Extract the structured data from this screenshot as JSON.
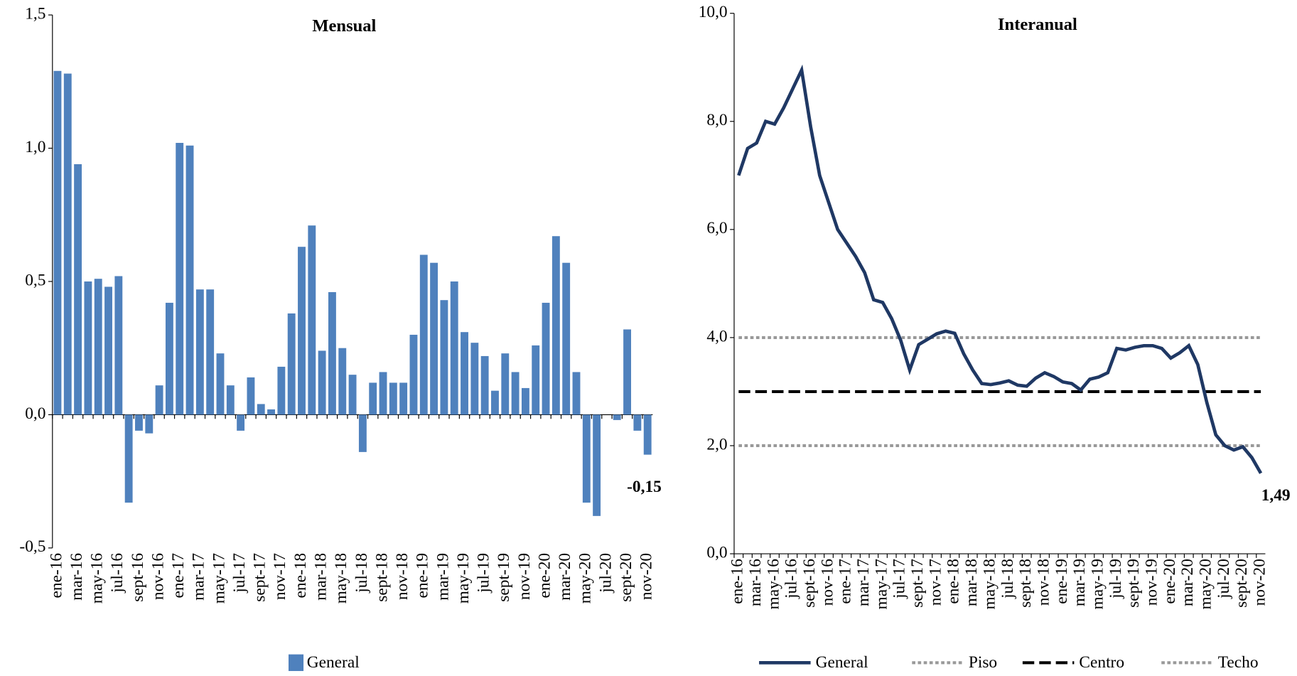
{
  "chart_data": [
    {
      "type": "bar",
      "title": "Mensual",
      "categories": [
        "ene-16",
        null,
        "mar-16",
        null,
        "may-16",
        null,
        "jul-16",
        null,
        "sept-16",
        null,
        "nov-16",
        null,
        "ene-17",
        null,
        "mar-17",
        null,
        "may-17",
        null,
        "jul-17",
        null,
        "sept-17",
        null,
        "nov-17",
        null,
        "ene-18",
        null,
        "mar-18",
        null,
        "may-18",
        null,
        "jul-18",
        null,
        "sept-18",
        null,
        "nov-18",
        null,
        "ene-19",
        null,
        "mar-19",
        null,
        "may-19",
        null,
        "jul-19",
        null,
        "sept-19",
        null,
        "nov-19",
        null,
        "ene-20",
        null,
        "mar-20",
        null,
        "may-20",
        null,
        "jul-20",
        null,
        "sept-20",
        null,
        "nov-20"
      ],
      "series": [
        {
          "name": "General",
          "color": "#4f81bd",
          "values": [
            1.29,
            1.28,
            0.94,
            0.5,
            0.51,
            0.48,
            0.52,
            -0.33,
            -0.06,
            -0.07,
            0.11,
            0.42,
            1.02,
            1.01,
            0.47,
            0.47,
            0.23,
            0.11,
            -0.06,
            0.14,
            0.04,
            0.02,
            0.18,
            0.38,
            0.63,
            0.71,
            0.24,
            0.46,
            0.25,
            0.15,
            -0.14,
            0.12,
            0.16,
            0.12,
            0.12,
            0.3,
            0.6,
            0.57,
            0.43,
            0.5,
            0.31,
            0.27,
            0.22,
            0.09,
            0.23,
            0.16,
            0.1,
            0.26,
            0.42,
            0.67,
            0.57,
            0.16,
            -0.33,
            -0.38,
            0,
            -0.02,
            0.32,
            -0.06,
            -0.15
          ],
          "value_labels": [
            null,
            null,
            null,
            null,
            null,
            null,
            null,
            null,
            null,
            null,
            null,
            null,
            null,
            null,
            null,
            null,
            null,
            null,
            null,
            null,
            null,
            null,
            null,
            null,
            null,
            null,
            null,
            null,
            null,
            null,
            null,
            null,
            null,
            null,
            null,
            null,
            null,
            null,
            null,
            null,
            null,
            null,
            null,
            null,
            null,
            null,
            null,
            null,
            null,
            null,
            null,
            null,
            null,
            null,
            null,
            null,
            null,
            null,
            "-0,15"
          ]
        }
      ],
      "ylim": [
        -0.5,
        1.5
      ],
      "yticks": [
        {
          "value": -0.5,
          "label": "-0,5"
        },
        {
          "value": 0,
          "label": "0,0"
        },
        {
          "value": 0.5,
          "label": "0,5"
        },
        {
          "value": 1,
          "label": "1,0"
        },
        {
          "value": 1.5,
          "label": "1,5"
        }
      ],
      "grid": false
    },
    {
      "type": "line",
      "title": "Interanual",
      "categories": [
        "ene-16",
        null,
        "mar-16",
        null,
        "may-16",
        null,
        "jul-16",
        null,
        "sept-16",
        null,
        "nov-16",
        null,
        "ene-17",
        null,
        "mar-17",
        null,
        "may-17",
        null,
        "jul-17",
        null,
        "sept-17",
        null,
        "nov-17",
        null,
        "ene-18",
        null,
        "mar-18",
        null,
        "may-18",
        null,
        "jul-18",
        null,
        "sept-18",
        null,
        "nov-18",
        null,
        "ene-19",
        null,
        "mar-19",
        null,
        "may-19",
        null,
        "jul-19",
        null,
        "sept-19",
        null,
        "nov-19",
        null,
        "ene-20",
        null,
        "mar-20",
        null,
        "may-20",
        null,
        "jul-20",
        null,
        "sept-20",
        null,
        "nov-20"
      ],
      "series": [
        {
          "name": "General",
          "color": "#1f3864",
          "style": "solid",
          "values": [
            7.0,
            7.5,
            7.6,
            8.0,
            7.95,
            8.25,
            8.6,
            8.95,
            7.9,
            7.0,
            6.5,
            6.0,
            5.75,
            5.5,
            5.2,
            4.7,
            4.65,
            4.35,
            3.95,
            3.4,
            3.87,
            3.97,
            4.07,
            4.12,
            4.08,
            3.7,
            3.4,
            3.15,
            3.13,
            3.16,
            3.2,
            3.12,
            3.1,
            3.25,
            3.35,
            3.28,
            3.18,
            3.15,
            3.03,
            3.23,
            3.27,
            3.35,
            3.8,
            3.77,
            3.82,
            3.85,
            3.85,
            3.8,
            3.62,
            3.72,
            3.85,
            3.5,
            2.8,
            2.2,
            2.0,
            1.92,
            1.98,
            1.78,
            1.49
          ],
          "value_labels": [
            null,
            null,
            null,
            null,
            null,
            null,
            null,
            null,
            null,
            null,
            null,
            null,
            null,
            null,
            null,
            null,
            null,
            null,
            null,
            null,
            null,
            null,
            null,
            null,
            null,
            null,
            null,
            null,
            null,
            null,
            null,
            null,
            null,
            null,
            null,
            null,
            null,
            null,
            null,
            null,
            null,
            null,
            null,
            null,
            null,
            null,
            null,
            null,
            null,
            null,
            null,
            null,
            null,
            null,
            null,
            null,
            null,
            null,
            "1,49"
          ]
        },
        {
          "name": "Piso",
          "color": "#999999",
          "style": "dotted",
          "values": [
            2,
            2,
            2,
            2,
            2,
            2,
            2,
            2,
            2,
            2,
            2,
            2,
            2,
            2,
            2,
            2,
            2,
            2,
            2,
            2,
            2,
            2,
            2,
            2,
            2,
            2,
            2,
            2,
            2,
            2,
            2,
            2,
            2,
            2,
            2,
            2,
            2,
            2,
            2,
            2,
            2,
            2,
            2,
            2,
            2,
            2,
            2,
            2,
            2,
            2,
            2,
            2,
            2,
            2,
            2,
            2,
            2,
            2,
            2
          ]
        },
        {
          "name": "Centro",
          "color": "#000000",
          "style": "dashed",
          "values": [
            3,
            3,
            3,
            3,
            3,
            3,
            3,
            3,
            3,
            3,
            3,
            3,
            3,
            3,
            3,
            3,
            3,
            3,
            3,
            3,
            3,
            3,
            3,
            3,
            3,
            3,
            3,
            3,
            3,
            3,
            3,
            3,
            3,
            3,
            3,
            3,
            3,
            3,
            3,
            3,
            3,
            3,
            3,
            3,
            3,
            3,
            3,
            3,
            3,
            3,
            3,
            3,
            3,
            3,
            3,
            3,
            3,
            3,
            3
          ]
        },
        {
          "name": "Techo",
          "color": "#999999",
          "style": "dotted",
          "values": [
            4,
            4,
            4,
            4,
            4,
            4,
            4,
            4,
            4,
            4,
            4,
            4,
            4,
            4,
            4,
            4,
            4,
            4,
            4,
            4,
            4,
            4,
            4,
            4,
            4,
            4,
            4,
            4,
            4,
            4,
            4,
            4,
            4,
            4,
            4,
            4,
            4,
            4,
            4,
            4,
            4,
            4,
            4,
            4,
            4,
            4,
            4,
            4,
            4,
            4,
            4,
            4,
            4,
            4,
            4,
            4,
            4,
            4,
            4
          ]
        }
      ],
      "ylim": [
        0,
        10
      ],
      "yticks": [
        {
          "value": 0,
          "label": "0,0"
        },
        {
          "value": 2,
          "label": "2,0"
        },
        {
          "value": 4,
          "label": "4,0"
        },
        {
          "value": 6,
          "label": "6,0"
        },
        {
          "value": 8,
          "label": "8,0"
        },
        {
          "value": 10,
          "label": "10,0"
        }
      ],
      "grid": false
    }
  ]
}
